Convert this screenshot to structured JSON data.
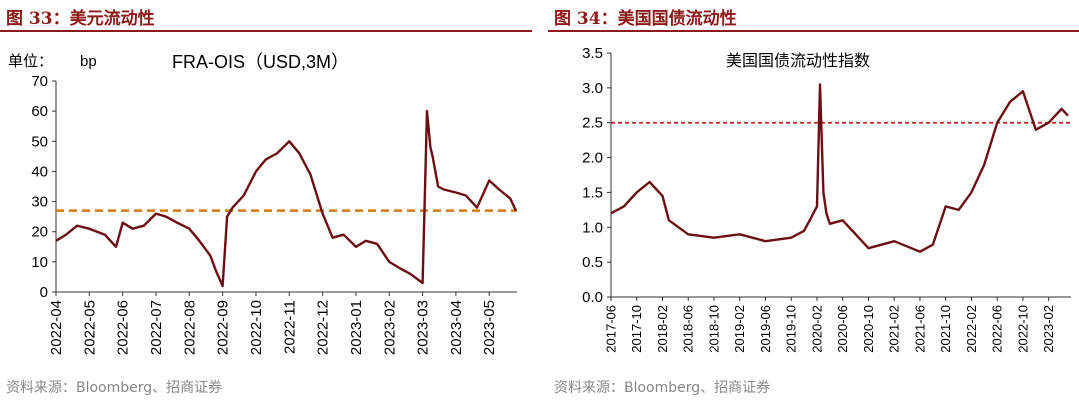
{
  "left": {
    "figure_title": "图 33：美元流动性",
    "unit_label": "单位：",
    "unit": "bp",
    "source": "资料来源：Bloomberg、招商证券"
  },
  "right": {
    "figure_title": "图 34：美国国债流动性",
    "source": "资料来源：Bloomberg、招商证券"
  },
  "colors": {
    "line": "#6b0f14",
    "title": "#8b1a1a",
    "ref_left": "#d07a12",
    "ref_right": "#cc1f1f"
  },
  "chart_data": [
    {
      "type": "line",
      "title": "FRA-OIS（USD,3M）",
      "xlabel": "",
      "ylabel": "",
      "ylim": [
        0,
        70
      ],
      "yticks": [
        0,
        10,
        20,
        30,
        40,
        50,
        60,
        70
      ],
      "xticks": [
        "2022-04",
        "2022-05",
        "2022-06",
        "2022-07",
        "2022-08",
        "2022-09",
        "2022-10",
        "2022-11",
        "2022-12",
        "2023-01",
        "2023-02",
        "2023-03",
        "2023-04",
        "2023-05"
      ],
      "reference_line": {
        "y": 27,
        "style": "dashed"
      },
      "grid": false,
      "legend": "none",
      "series": [
        {
          "x": [
            "2022-04-01",
            "2022-04-10",
            "2022-04-20",
            "2022-05-01",
            "2022-05-15",
            "2022-05-25",
            "2022-06-01",
            "2022-06-10",
            "2022-06-20",
            "2022-07-01",
            "2022-07-10",
            "2022-07-20",
            "2022-08-01",
            "2022-08-10",
            "2022-08-20",
            "2022-08-25",
            "2022-09-01",
            "2022-09-05",
            "2022-09-10",
            "2022-09-20",
            "2022-10-01",
            "2022-10-10",
            "2022-10-20",
            "2022-11-01",
            "2022-11-10",
            "2022-11-20",
            "2022-12-01",
            "2022-12-10",
            "2022-12-20",
            "2023-01-01",
            "2023-01-10",
            "2023-01-20",
            "2023-02-01",
            "2023-02-10",
            "2023-02-20",
            "2023-03-01",
            "2023-03-05",
            "2023-03-08",
            "2023-03-10",
            "2023-03-15",
            "2023-03-20",
            "2023-04-01",
            "2023-04-10",
            "2023-04-20",
            "2023-05-01",
            "2023-05-10",
            "2023-05-20",
            "2023-05-25"
          ],
          "values": [
            17,
            19,
            22,
            21,
            19,
            15,
            23,
            21,
            22,
            26,
            25,
            23,
            21,
            17,
            12,
            7,
            2,
            25,
            28,
            32,
            40,
            44,
            46,
            50,
            46,
            39,
            26,
            18,
            19,
            15,
            17,
            16,
            10,
            8,
            6,
            3,
            60,
            48,
            45,
            35,
            34,
            33,
            32,
            28,
            37,
            34,
            31,
            27
          ]
        }
      ]
    },
    {
      "type": "line",
      "title": "美国国债流动性指数",
      "xlabel": "",
      "ylabel": "",
      "ylim": [
        0.0,
        3.5
      ],
      "yticks": [
        "0.0",
        "0.5",
        "1.0",
        "1.5",
        "2.0",
        "2.5",
        "3.0",
        "3.5"
      ],
      "xticks": [
        "2017-06",
        "2017-10",
        "2018-02",
        "2018-06",
        "2018-10",
        "2019-02",
        "2019-06",
        "2019-10",
        "2020-02",
        "2020-06",
        "2020-10",
        "2021-02",
        "2021-06",
        "2021-10",
        "2022-02",
        "2022-06",
        "2022-10",
        "2023-02"
      ],
      "reference_line": {
        "y": 2.5,
        "style": "dashed"
      },
      "grid": false,
      "legend": "none",
      "series": [
        {
          "x": [
            "2017-06",
            "2017-08",
            "2017-10",
            "2017-12",
            "2018-02",
            "2018-03",
            "2018-06",
            "2018-10",
            "2019-02",
            "2019-06",
            "2019-10",
            "2019-12",
            "2020-02",
            "2020-02-15",
            "2020-03",
            "2020-03-15",
            "2020-04",
            "2020-06",
            "2020-10",
            "2021-02",
            "2021-06",
            "2021-08",
            "2021-10",
            "2021-12",
            "2022-02",
            "2022-04",
            "2022-06",
            "2022-08",
            "2022-10",
            "2022-12",
            "2023-02",
            "2023-04",
            "2023-05"
          ],
          "values": [
            1.2,
            1.3,
            1.5,
            1.65,
            1.45,
            1.1,
            0.9,
            0.85,
            0.9,
            0.8,
            0.85,
            0.95,
            1.3,
            3.05,
            1.5,
            1.2,
            1.05,
            1.1,
            0.7,
            0.8,
            0.65,
            0.75,
            1.3,
            1.25,
            1.5,
            1.9,
            2.5,
            2.8,
            2.95,
            2.4,
            2.5,
            2.7,
            2.6
          ]
        }
      ]
    }
  ]
}
